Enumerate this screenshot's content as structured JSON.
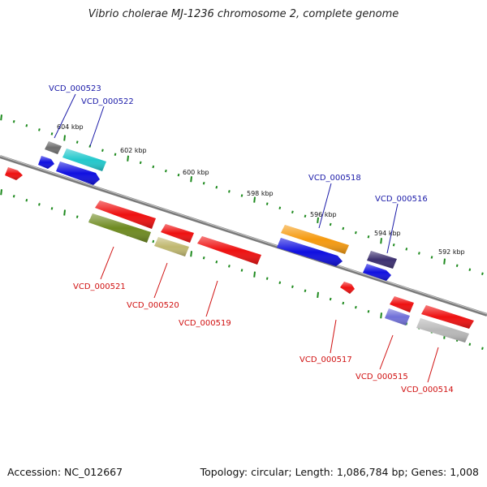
{
  "title": "Vibrio cholerae MJ-1236 chromosome 2, complete genome",
  "footer": {
    "accession": "Accession: NC_012667",
    "summary": "Topology: circular; Length: 1,086,784 bp; Genes: 1,008"
  },
  "colors": {
    "backbone": "#7a7a7a",
    "tick": "#1e8a1e",
    "label_forward": "#1a1aa8",
    "label_reverse": "#d01010",
    "scale_text": "#111111"
  },
  "scale_labels": [
    "604 kbp",
    "602 kbp",
    "600 kbp",
    "598 kbp",
    "596 kbp",
    "594 kbp",
    "592 kbp"
  ],
  "gene_labels": [
    {
      "text": "VCD_000523",
      "strand": "forward"
    },
    {
      "text": "VCD_000522",
      "strand": "forward"
    },
    {
      "text": "VCD_000518",
      "strand": "forward"
    },
    {
      "text": "VCD_000516",
      "strand": "forward"
    },
    {
      "text": "VCD_000521",
      "strand": "reverse"
    },
    {
      "text": "VCD_000520",
      "strand": "reverse"
    },
    {
      "text": "VCD_000519",
      "strand": "reverse"
    },
    {
      "text": "VCD_000517",
      "strand": "reverse"
    },
    {
      "text": "VCD_000515",
      "strand": "reverse"
    },
    {
      "text": "VCD_000514",
      "strand": "reverse"
    }
  ],
  "features": [
    {
      "name": "feature-gray-dark",
      "color": "#6e6e6e"
    },
    {
      "name": "feature-cyan",
      "color": "#22c8cc"
    },
    {
      "name": "feature-blue-1",
      "color": "#1010e0"
    },
    {
      "name": "feature-blue-2",
      "color": "#1010e0"
    },
    {
      "name": "feature-red-left-edge",
      "color": "#ee1010"
    },
    {
      "name": "feature-red-1",
      "color": "#ee1010"
    },
    {
      "name": "feature-olive",
      "color": "#6e8a20"
    },
    {
      "name": "feature-red-2",
      "color": "#ee1010"
    },
    {
      "name": "feature-khaki",
      "color": "#c0b870"
    },
    {
      "name": "feature-red-3",
      "color": "#ee1010"
    },
    {
      "name": "feature-orange",
      "color": "#f59a10"
    },
    {
      "name": "feature-blue-3",
      "color": "#1010e0"
    },
    {
      "name": "feature-red-4",
      "color": "#ee1010"
    },
    {
      "name": "feature-navy",
      "color": "#3c3070"
    },
    {
      "name": "feature-blue-4",
      "color": "#1010e0"
    },
    {
      "name": "feature-red-5",
      "color": "#ee1010"
    },
    {
      "name": "feature-lavender",
      "color": "#7070d8"
    },
    {
      "name": "feature-red-6",
      "color": "#ee1010"
    },
    {
      "name": "feature-silver",
      "color": "#b8b8b8"
    }
  ]
}
